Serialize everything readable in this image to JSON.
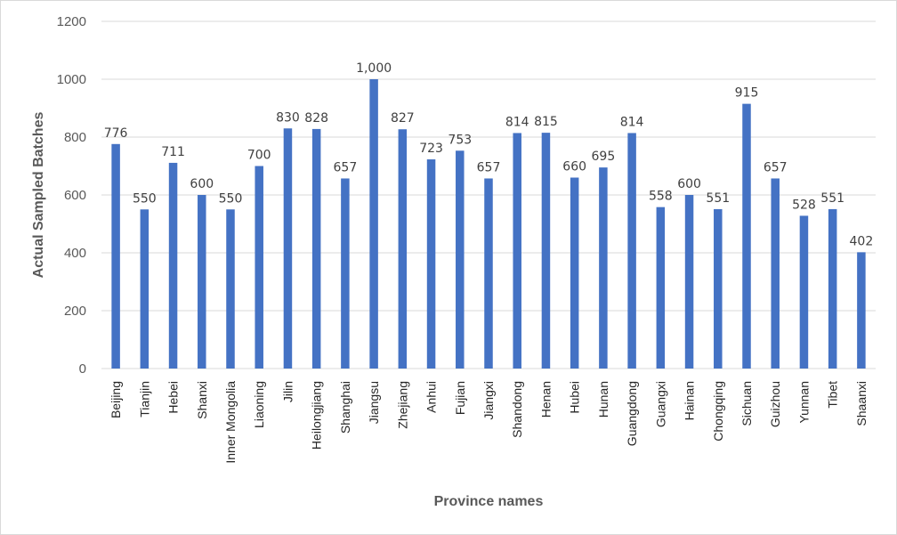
{
  "chart_data": {
    "type": "bar",
    "title": "",
    "xlabel": "Province names",
    "ylabel": "Actual Sampled Batches",
    "ylim": [
      0,
      1200
    ],
    "yticks": [
      "0",
      "200",
      "400",
      "600",
      "800",
      "1000",
      "1200"
    ],
    "grid": true,
    "bar_color": "#4472C4",
    "categories": [
      "Beijing",
      "Tianjin",
      "Hebei",
      "Shanxi",
      "Inner Mongolia",
      "Liaoning",
      "Jilin",
      "Heilongjiang",
      "Shanghai",
      "Jiangsu",
      "Zhejiang",
      "Anhui",
      "Fujian",
      "Jiangxi",
      "Shandong",
      "Henan",
      "Hubei",
      "Hunan",
      "Guangdong",
      "Guangxi",
      "Hainan",
      "Chongqing",
      "Sichuan",
      "Guizhou",
      "Yunnan",
      "Tibet",
      "Shaanxi"
    ],
    "values": [
      776,
      550,
      711,
      600,
      550,
      700,
      830,
      828,
      657,
      1000,
      827,
      723,
      753,
      657,
      814,
      815,
      660,
      695,
      814,
      558,
      600,
      551,
      915,
      657,
      528,
      551,
      402
    ],
    "data_labels": [
      "776",
      "550",
      "711",
      "600",
      "550",
      "700",
      "830",
      "828",
      "657",
      "1,000",
      "827",
      "723",
      "753",
      "657",
      "814",
      "815",
      "660",
      "695",
      "814",
      "558",
      "600",
      "551",
      "915",
      "657",
      "528",
      "551",
      "402"
    ]
  }
}
